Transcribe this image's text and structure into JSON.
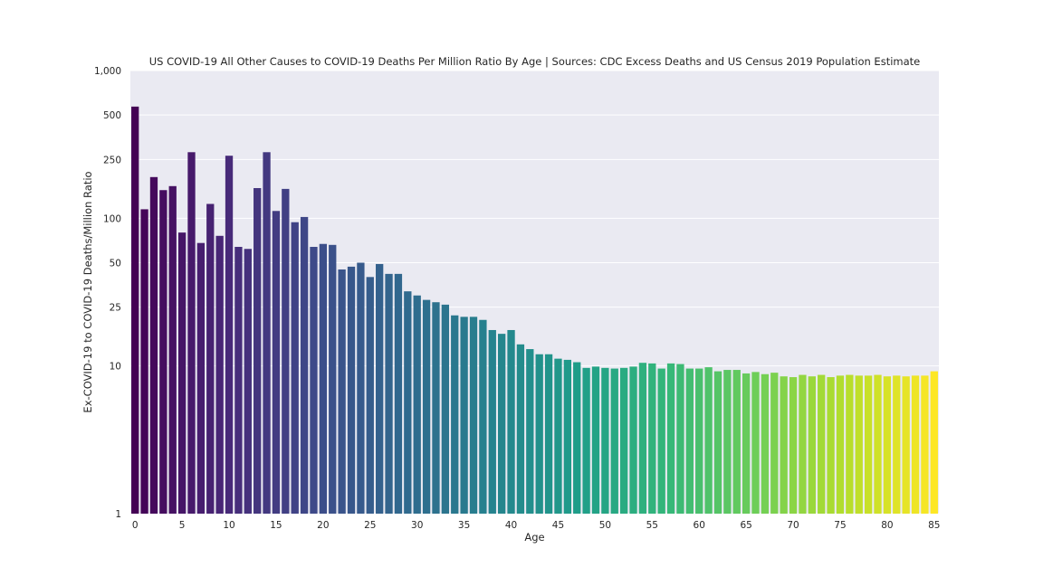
{
  "chart_data": {
    "type": "bar",
    "title": "US COVID-19 All Other Causes to COVID-19 Deaths Per Million Ratio By Age | Sources: CDC Excess Deaths and US Census 2019 Population Estimate",
    "xlabel": "Age",
    "ylabel": "Ex-COVID-19 to COVID-19 Deaths/Million Ratio",
    "y_scale": "log",
    "ylim": [
      1,
      1000
    ],
    "y_ticks": [
      1,
      10,
      25,
      50,
      100,
      250,
      500,
      1000
    ],
    "y_tick_labels": [
      "1",
      "10",
      "25",
      "50",
      "100",
      "250",
      "500",
      "1,000"
    ],
    "x_tick_labels": [
      "0",
      "5",
      "10",
      "15",
      "20",
      "25",
      "30",
      "35",
      "40",
      "45",
      "50",
      "55",
      "60",
      "65",
      "70",
      "75",
      "80",
      "85"
    ],
    "grid": "horizontal",
    "background_color": "#eaeaf2",
    "colormap": "viridis",
    "categories": [
      0,
      1,
      2,
      3,
      4,
      5,
      6,
      7,
      8,
      9,
      10,
      11,
      12,
      13,
      14,
      15,
      16,
      17,
      18,
      19,
      20,
      21,
      22,
      23,
      24,
      25,
      26,
      27,
      28,
      29,
      30,
      31,
      32,
      33,
      34,
      35,
      36,
      37,
      38,
      39,
      40,
      41,
      42,
      43,
      44,
      45,
      46,
      47,
      48,
      49,
      50,
      51,
      52,
      53,
      54,
      55,
      56,
      57,
      58,
      59,
      60,
      61,
      62,
      63,
      64,
      65,
      66,
      67,
      68,
      69,
      70,
      71,
      72,
      73,
      74,
      75,
      76,
      77,
      78,
      79,
      80,
      81,
      82,
      83,
      84,
      85
    ],
    "values": [
      570,
      115,
      190,
      155,
      165,
      80,
      280,
      68,
      125,
      76,
      265,
      64,
      62,
      160,
      280,
      112,
      158,
      94,
      102,
      64,
      67,
      66,
      45,
      47,
      50,
      40,
      49,
      42,
      42,
      32,
      30,
      28,
      27,
      26,
      22,
      21.5,
      21.5,
      20.5,
      17.5,
      16.5,
      17.5,
      14,
      13,
      12,
      12,
      11.2,
      11,
      10.6,
      9.7,
      9.9,
      9.7,
      9.6,
      9.7,
      9.9,
      10.5,
      10.4,
      9.6,
      10.4,
      10.3,
      9.6,
      9.6,
      9.8,
      9.2,
      9.4,
      9.4,
      8.9,
      9.1,
      8.8,
      9.0,
      8.5,
      8.4,
      8.7,
      8.5,
      8.7,
      8.4,
      8.6,
      8.7,
      8.6,
      8.6,
      8.7,
      8.5,
      8.6,
      8.5,
      8.6,
      8.6,
      9.2
    ]
  }
}
